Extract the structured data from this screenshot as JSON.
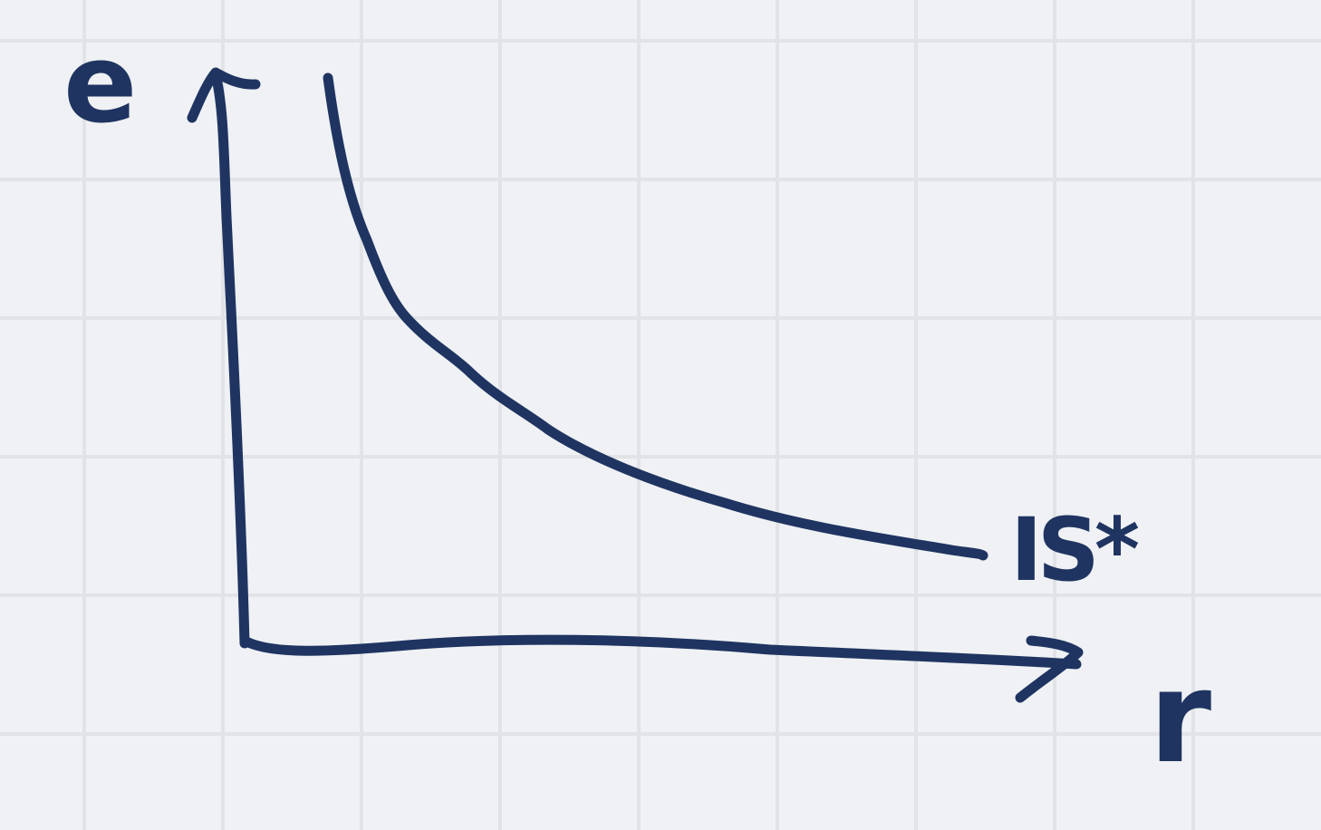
{
  "colors": {
    "background": "#eff1f4",
    "grid": "#e1e3e6",
    "ink": "#1f3461"
  },
  "chart_data": {
    "type": "line",
    "style": "hand-drawn sketch",
    "grid": true,
    "title": "",
    "xlabel": "r",
    "ylabel": "e",
    "series": [
      {
        "name": "",
        "label": "IS*",
        "shape": "decreasing convex curve"
      }
    ]
  }
}
